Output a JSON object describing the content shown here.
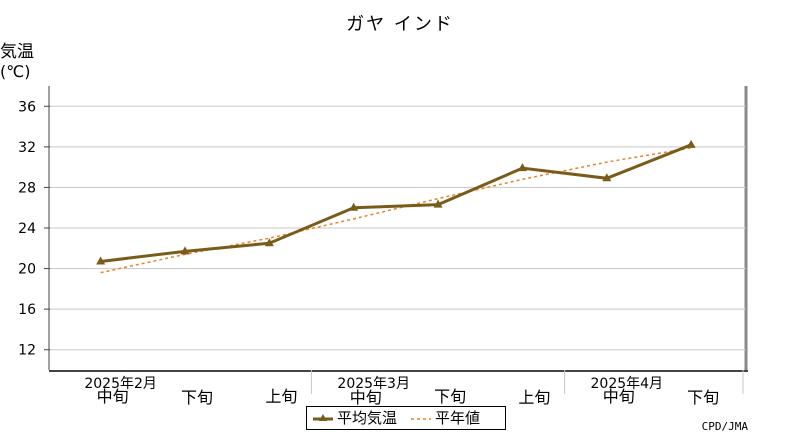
{
  "chart_data": {
    "type": "line",
    "title": "ガヤ インド",
    "ylabel": "気温",
    "yunit": "(℃)",
    "ylim": [
      10,
      38
    ],
    "yticks": [
      12,
      16,
      20,
      24,
      28,
      32,
      36
    ],
    "grid": true,
    "categories": [
      "中旬",
      "下旬",
      "上旬",
      "中旬",
      "下旬",
      "上旬",
      "中旬",
      "下旬"
    ],
    "month_labels": [
      {
        "label": "2025年2月",
        "category_index": 0
      },
      {
        "label": "2025年3月",
        "category_index": 3
      },
      {
        "label": "2025年4月",
        "category_index": 6
      }
    ],
    "series": [
      {
        "name": "平均気温",
        "values": [
          20.7,
          21.7,
          22.5,
          26.0,
          26.3,
          29.9,
          28.9,
          32.2
        ],
        "color": "#7a5c1a",
        "style": "solid",
        "marker": "triangle"
      },
      {
        "name": "平年値",
        "values": [
          19.6,
          21.4,
          23.0,
          24.9,
          26.9,
          28.8,
          30.5,
          31.9
        ],
        "color": "#e8822a",
        "style": "dashed"
      }
    ],
    "legend_position": "bottom-center",
    "credit": "CPD/JMA"
  }
}
